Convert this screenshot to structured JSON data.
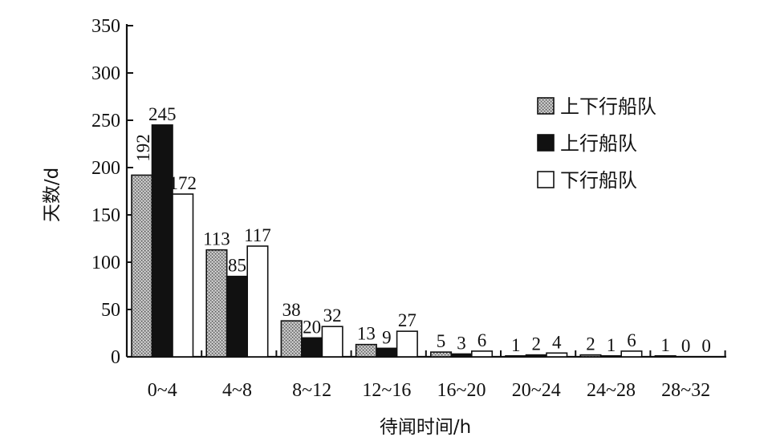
{
  "chart_data": {
    "type": "bar",
    "title": "",
    "xlabel": "待闻时间/h",
    "ylabel": "天数/d",
    "ylim": [
      0,
      350
    ],
    "yticks": [
      0,
      50,
      100,
      150,
      200,
      250,
      300,
      350
    ],
    "grid": false,
    "legend_position": "top-right",
    "categories": [
      "0~4",
      "4~8",
      "8~12",
      "12~16",
      "16~20",
      "20~24",
      "24~28",
      "28~32"
    ],
    "series": [
      {
        "name": "上下行船队",
        "fill": "dotted-gray",
        "values": [
          192,
          113,
          38,
          13,
          5,
          1,
          2,
          1
        ]
      },
      {
        "name": "上行船队",
        "fill": "black",
        "values": [
          245,
          85,
          20,
          9,
          3,
          2,
          1,
          0
        ]
      },
      {
        "name": "下行船队",
        "fill": "white",
        "values": [
          172,
          117,
          32,
          27,
          6,
          4,
          6,
          0
        ]
      }
    ]
  }
}
